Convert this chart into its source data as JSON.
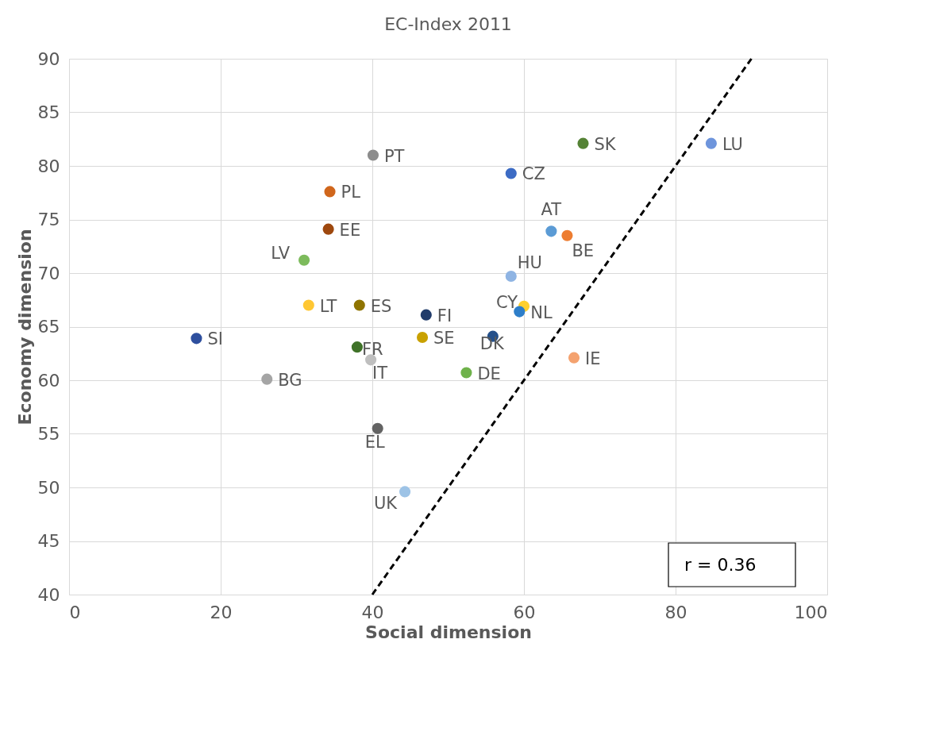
{
  "chart_data": {
    "type": "scatter",
    "title": "EC-Index 2011",
    "xlabel": "Social dimension",
    "ylabel": "Economy dimension",
    "xlim": [
      0,
      100
    ],
    "xticks": [
      0,
      20,
      40,
      60,
      80,
      100
    ],
    "ylim": [
      40,
      90
    ],
    "yticks": [
      40,
      45,
      50,
      55,
      60,
      65,
      70,
      75,
      80,
      85,
      90
    ],
    "grid": true,
    "series": [
      {
        "marker": "circle",
        "x": [
          16.8,
          26.1,
          31.0,
          31.6,
          34.4,
          34.2,
          38.0,
          38.3,
          40.1,
          39.8,
          40.7,
          44.3,
          46.6,
          47.1,
          52.4,
          55.9,
          58.3,
          60.0,
          59.4,
          58.3,
          63.6,
          65.7,
          66.6,
          67.8,
          84.7
        ],
        "values": [
          63.9,
          60.1,
          71.2,
          67.0,
          77.6,
          74.1,
          63.1,
          67.0,
          81.0,
          61.9,
          55.5,
          49.6,
          64.0,
          66.1,
          60.7,
          64.1,
          69.7,
          66.9,
          66.4,
          79.3,
          73.9,
          73.5,
          62.1,
          82.1,
          82.1
        ],
        "colors": [
          "#2e4f9e",
          "#a5a5a5",
          "#7dbb5c",
          "#ffc733",
          "#d0661c",
          "#9e480e",
          "#3f7228",
          "#8f7400",
          "#8c8c8c",
          "#bfbfbf",
          "#636363",
          "#9dc3e6",
          "#c9a100",
          "#213c6b",
          "#6fb24b",
          "#25508a",
          "#8fb4e3",
          "#ffd02f",
          "#2e7ec9",
          "#3c6bc4",
          "#5b9bd5",
          "#ed7d31",
          "#f4a26f",
          "#548235",
          "#6e95dc"
        ]
      },
      {
        "type": "line",
        "x": [
          40,
          90
        ],
        "values": [
          40,
          90
        ],
        "color": "#000000",
        "line_style": "dashed"
      }
    ],
    "annotations": [
      {
        "text": "SI",
        "x": 16.8,
        "y": 63.9
      },
      {
        "text": "BG",
        "x": 26.1,
        "y": 60.1
      },
      {
        "text": "LV",
        "x": 31.0,
        "y": 71.2
      },
      {
        "text": "LT",
        "x": 31.6,
        "y": 67.0
      },
      {
        "text": "PL",
        "x": 34.4,
        "y": 77.6
      },
      {
        "text": "EE",
        "x": 34.2,
        "y": 74.1
      },
      {
        "text": "FR",
        "x": 38.0,
        "y": 63.1
      },
      {
        "text": "ES",
        "x": 38.3,
        "y": 67.0
      },
      {
        "text": "PT",
        "x": 40.1,
        "y": 81.0
      },
      {
        "text": "IT",
        "x": 39.8,
        "y": 61.9
      },
      {
        "text": "EL",
        "x": 40.7,
        "y": 55.5
      },
      {
        "text": "UK",
        "x": 44.3,
        "y": 49.6
      },
      {
        "text": "SE",
        "x": 46.6,
        "y": 64.0
      },
      {
        "text": "FI",
        "x": 47.1,
        "y": 66.1
      },
      {
        "text": "DE",
        "x": 52.4,
        "y": 60.7
      },
      {
        "text": "DK",
        "x": 55.9,
        "y": 64.1
      },
      {
        "text": "HU",
        "x": 58.3,
        "y": 69.7
      },
      {
        "text": "CY",
        "x": 60.0,
        "y": 66.9
      },
      {
        "text": "NL",
        "x": 59.4,
        "y": 66.4
      },
      {
        "text": "CZ",
        "x": 58.3,
        "y": 79.3
      },
      {
        "text": "AT",
        "x": 63.6,
        "y": 73.9
      },
      {
        "text": "BE",
        "x": 65.7,
        "y": 73.5
      },
      {
        "text": "IE",
        "x": 66.6,
        "y": 62.1
      },
      {
        "text": "SK",
        "x": 67.8,
        "y": 82.1
      },
      {
        "text": "LU",
        "x": 84.7,
        "y": 82.1
      },
      "r = 0.36"
    ]
  }
}
